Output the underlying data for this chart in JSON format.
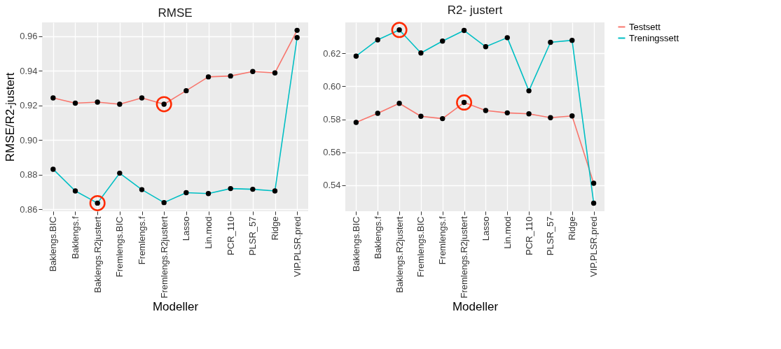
{
  "chart_data": [
    {
      "type": "line",
      "title": "RMSE",
      "xlabel": "Modeller",
      "ylabel": "RMSE/R2-justert",
      "categories": [
        "Baklengs.BIC",
        "Baklengs.f",
        "Baklengs.R2justert",
        "Fremlengs.BIC",
        "Fremlengs.f",
        "Fremlengs.R2justert",
        "Lasso",
        "Lin.mod",
        "PCR_110",
        "PLSR_57",
        "Ridge",
        "VIP.PLSR.pred"
      ],
      "series": [
        {
          "name": "Testsett",
          "color": "#f8766d",
          "values": [
            0.9243,
            0.9213,
            0.9219,
            0.9207,
            0.9243,
            0.9207,
            0.9285,
            0.9365,
            0.937,
            0.9396,
            0.9388,
            0.9634
          ]
        },
        {
          "name": "Treningssett",
          "color": "#00bfc4",
          "values": [
            0.8831,
            0.8705,
            0.8635,
            0.8808,
            0.8713,
            0.8638,
            0.8695,
            0.869,
            0.8719,
            0.8715,
            0.8705,
            0.9592
          ]
        },
        {
          "type": "scatter",
          "color": "#ff2a00",
          "values": [
            null,
            null,
            0.8635,
            null,
            null,
            0.9207,
            null,
            null,
            null,
            null,
            null,
            null
          ]
        }
      ],
      "ylim": [
        0.8588,
        0.968
      ],
      "yticks": [
        0.86,
        0.88,
        {
          "value": 0.9,
          "label": "0.90"
        },
        0.92,
        0.94,
        0.96
      ],
      "grid": true,
      "legend": "right",
      "marker": "circle"
    },
    {
      "type": "line",
      "title": "R2- justert",
      "xlabel": "Modeller",
      "categories": [
        "Baklengs.BIC",
        "Baklengs.f",
        "Baklengs.R2justert",
        "Fremlengs.BIC",
        "Fremlengs.f",
        "Fremlengs.R2justert",
        "Lasso",
        "Lin.mod",
        "PCR_110",
        "PLSR_57",
        "Ridge",
        "VIP.PLSR.pred"
      ],
      "series": [
        {
          "name": "Testsett",
          "color": "#f8766d",
          "values": [
            0.5781,
            0.5836,
            0.5897,
            0.5818,
            0.5804,
            0.5902,
            0.5853,
            0.5839,
            0.5833,
            0.581,
            0.582,
            0.5411
          ]
        },
        {
          "name": "Treningssett",
          "color": "#00bfc4",
          "values": [
            0.6184,
            0.6283,
            0.6343,
            0.6203,
            0.6275,
            0.634,
            0.6241,
            0.6296,
            0.5973,
            0.6268,
            0.628,
            0.529
          ]
        },
        {
          "type": "scatter",
          "color": "#ff2a00",
          "values": [
            null,
            null,
            0.6343,
            null,
            null,
            0.5902,
            null,
            null,
            null,
            null,
            null,
            null
          ]
        }
      ],
      "ylim": [
        0.5241,
        0.6389
      ],
      "yticks": [
        0.54,
        0.56,
        0.58,
        {
          "value": 0.6,
          "label": "0.60"
        },
        0.62
      ],
      "grid": true,
      "legend": "right",
      "marker": "circle"
    }
  ]
}
